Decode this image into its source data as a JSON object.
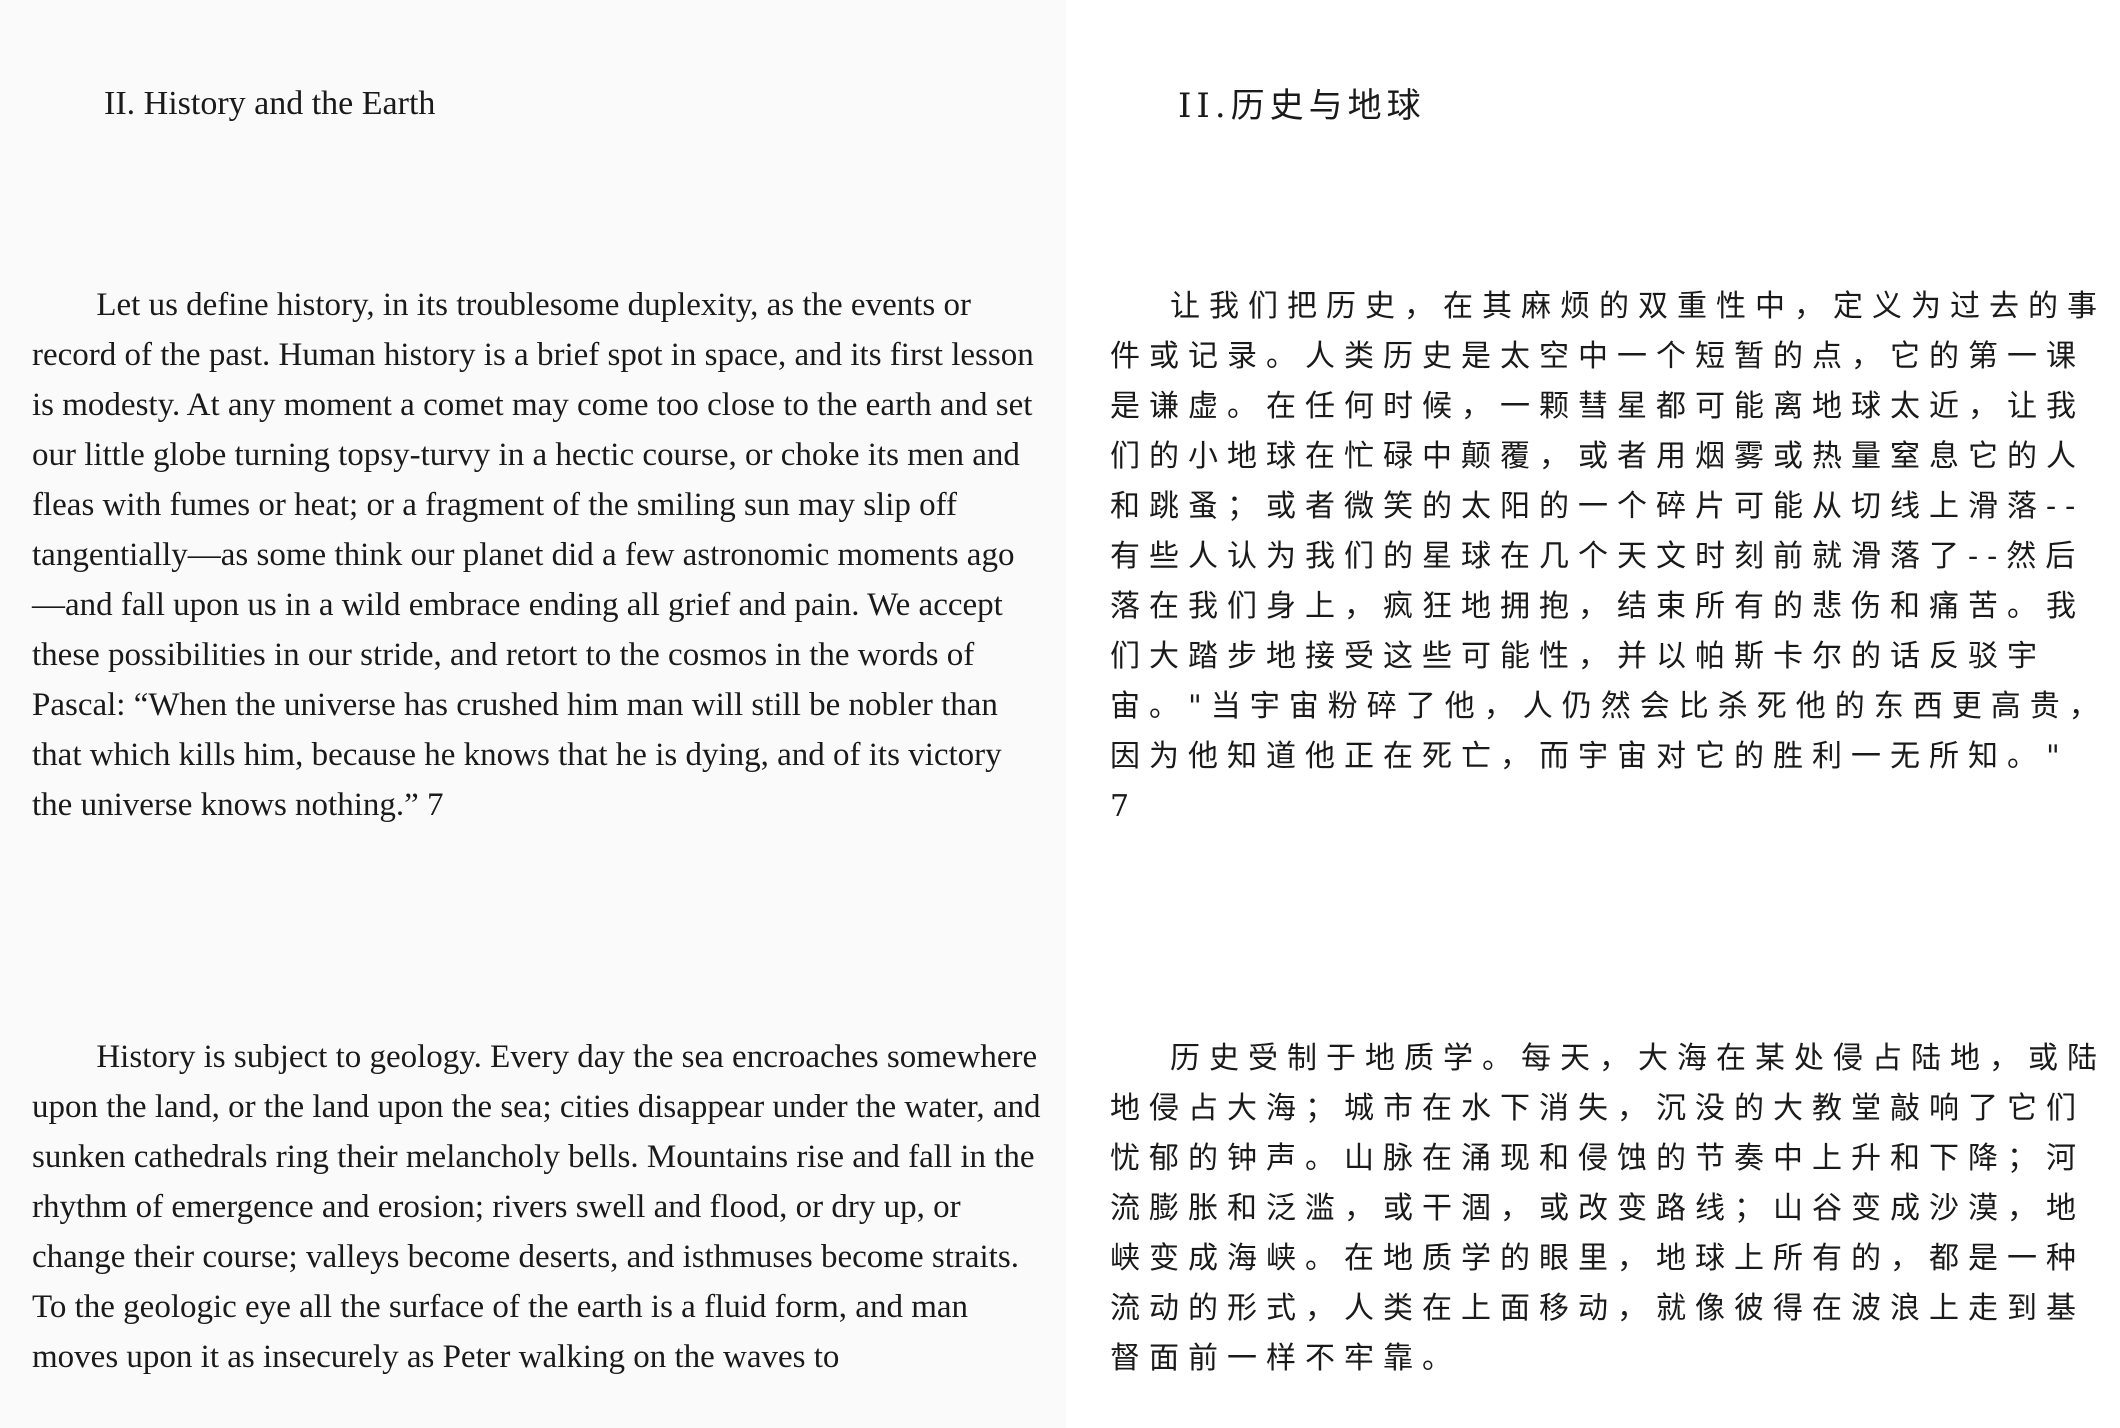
{
  "left_page": {
    "heading": "II. History and the Earth",
    "paragraphs": [
      "Let us define history, in its troublesome duplexity, as the events or record of the past. Human history is a brief spot in space, and its first lesson is modesty. At any moment a comet may come too close to the earth and set our little globe turning topsy-turvy in a hectic course, or choke its men and fleas with fumes or heat; or a fragment of the smiling sun may slip off tangentially—as some think our planet did a few astronomic moments ago—and fall upon us in a wild embrace ending all grief and pain. We accept these possibilities in our stride, and retort to the cosmos in the words of Pascal: “When the universe has crushed him man will still be nobler than that which kills him, because he knows that he is dying, and of its victory the universe knows nothing.” 7",
      "History is subject to geology. Every day the sea encroaches somewhere upon the land, or the land upon the sea; cities disappear under the water, and sunken cathedrals ring their melancholy bells. Mountains rise and fall in the rhythm of emergence and erosion; rivers swell and flood, or dry up, or change their course; valleys become deserts, and isthmuses become straits. To the geologic eye all the surface of the earth is a fluid form, and man moves upon it as insecurely as Peter walking on the waves to"
    ]
  },
  "right_page": {
    "heading": "II.历史与地球",
    "paragraphs": [
      "让我们把历史，在其麻烦的双重性中，定义为过去的事件或记录。人类历史是太空中一个短暂的点，它的第一课是谦虚。在任何时候，一颗彗星都可能离地球太近，让我们的小地球在忙碌中颠覆，或者用烟雾或热量窒息它的人和跳蚤；或者微笑的太阳的一个碎片可能从切线上滑落--有些人认为我们的星球在几个天文时刻前就滑落了--然后落在我们身上，疯狂地拥抱，结束所有的悲伤和痛苦。我们大踏步地接受这些可能性，并以帕斯卡尔的话反驳宇宙。\"当宇宙粉碎了他，人仍然会比杀死他的东西更高贵，因为他知道他正在死亡，而宇宙对它的胜利一无所知。\" 7",
      "历史受制于地质学。每天，大海在某处侵占陆地，或陆地侵占大海；城市在水下消失，沉没的大教堂敲响了它们忧郁的钟声。山脉在涌现和侵蚀的节奏中上升和下降；河流膨胀和泛滥，或干涸，或改变路线；山谷变成沙漠，地峡变成海峡。在地质学的眼里，地球上所有的，都是一种流动的形式，人类在上面移动，就像彼得在波浪上走到基督面前一样不牢靠。"
    ]
  }
}
